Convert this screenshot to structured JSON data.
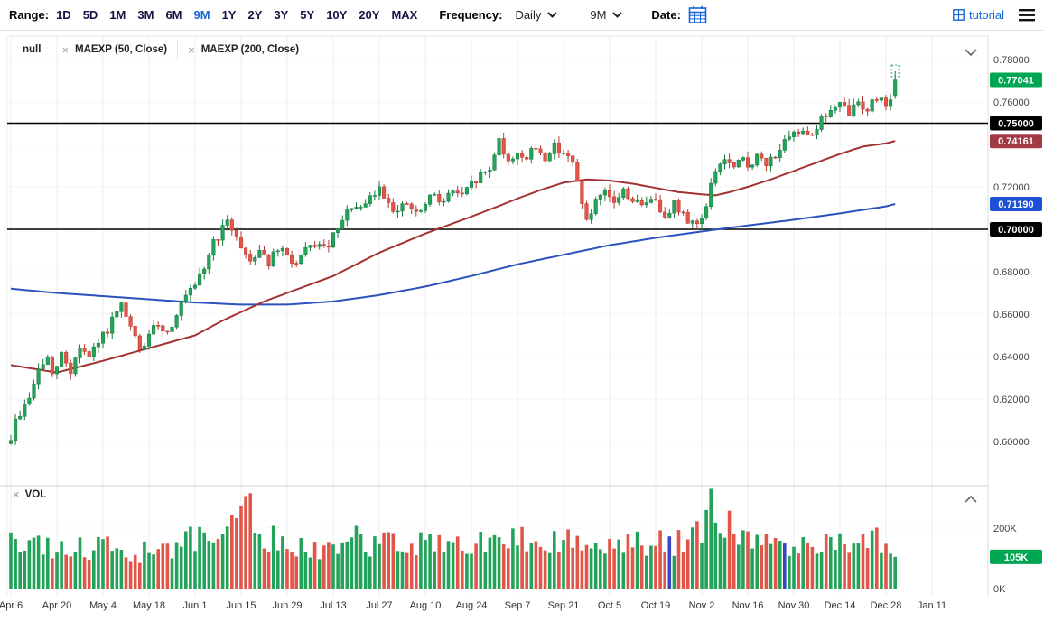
{
  "toolbar": {
    "range_label": "Range:",
    "range_options": [
      "1D",
      "5D",
      "1M",
      "3M",
      "6M",
      "9M",
      "1Y",
      "2Y",
      "3Y",
      "5Y",
      "10Y",
      "20Y",
      "MAX"
    ],
    "range_active": "9M",
    "frequency_label": "Frequency:",
    "frequency_value": "Daily",
    "period_value": "9M",
    "date_label": "Date:",
    "tutorial_label": "tutorial",
    "accent_color": "#1766d9"
  },
  "legend": {
    "main": [
      {
        "label": "null",
        "closable": false
      },
      {
        "label": "MAEXP (50, Close)",
        "closable": true
      },
      {
        "label": "MAEXP (200, Close)",
        "closable": true
      }
    ],
    "volume_label": "VOL"
  },
  "chart_data": {
    "type": "candlestick",
    "title": "",
    "candle_days": 193,
    "days_total": 205,
    "price_axis": {
      "min": 0.585,
      "max": 0.788,
      "ticks": [
        0.78,
        0.76,
        0.74,
        0.72,
        0.7,
        0.68,
        0.66,
        0.64,
        0.62,
        0.6
      ],
      "format_decimals": 5
    },
    "x_labels": [
      {
        "label": "Apr 6",
        "day": 0
      },
      {
        "label": "Apr 20",
        "day": 10
      },
      {
        "label": "May 4",
        "day": 20
      },
      {
        "label": "May 18",
        "day": 30
      },
      {
        "label": "Jun 1",
        "day": 40
      },
      {
        "label": "Jun 15",
        "day": 50
      },
      {
        "label": "Jun 29",
        "day": 60
      },
      {
        "label": "Jul 13",
        "day": 70
      },
      {
        "label": "Jul 27",
        "day": 80
      },
      {
        "label": "Aug 10",
        "day": 90
      },
      {
        "label": "Aug 24",
        "day": 100
      },
      {
        "label": "Sep 7",
        "day": 110
      },
      {
        "label": "Sep 21",
        "day": 120
      },
      {
        "label": "Oct 5",
        "day": 130
      },
      {
        "label": "Oct 19",
        "day": 140
      },
      {
        "label": "Nov 2",
        "day": 150
      },
      {
        "label": "Nov 16",
        "day": 160
      },
      {
        "label": "Nov 30",
        "day": 170
      },
      {
        "label": "Dec 14",
        "day": 180
      },
      {
        "label": "Dec 28",
        "day": 190
      },
      {
        "label": "Jan 11",
        "day": 200
      }
    ],
    "close_anchors": [
      [
        0,
        0.602
      ],
      [
        1,
        0.609
      ],
      [
        3,
        0.617
      ],
      [
        5,
        0.626
      ],
      [
        6,
        0.634
      ],
      [
        8,
        0.639
      ],
      [
        9,
        0.63
      ],
      [
        11,
        0.641
      ],
      [
        13,
        0.633
      ],
      [
        15,
        0.645
      ],
      [
        17,
        0.639
      ],
      [
        19,
        0.646
      ],
      [
        21,
        0.653
      ],
      [
        24,
        0.663
      ],
      [
        26,
        0.653
      ],
      [
        28,
        0.643
      ],
      [
        30,
        0.649
      ],
      [
        32,
        0.656
      ],
      [
        34,
        0.651
      ],
      [
        36,
        0.661
      ],
      [
        38,
        0.668
      ],
      [
        40,
        0.672
      ],
      [
        42,
        0.682
      ],
      [
        44,
        0.694
      ],
      [
        46,
        0.7
      ],
      [
        47,
        0.7025
      ],
      [
        49,
        0.698
      ],
      [
        50,
        0.691
      ],
      [
        52,
        0.6855
      ],
      [
        54,
        0.691
      ],
      [
        56,
        0.6845
      ],
      [
        58,
        0.69
      ],
      [
        60,
        0.6875
      ],
      [
        62,
        0.6835
      ],
      [
        64,
        0.689
      ],
      [
        66,
        0.6935
      ],
      [
        68,
        0.69
      ],
      [
        70,
        0.696
      ],
      [
        72,
        0.703
      ],
      [
        74,
        0.7115
      ],
      [
        76,
        0.708
      ],
      [
        78,
        0.7145
      ],
      [
        80,
        0.719
      ],
      [
        82,
        0.7135
      ],
      [
        84,
        0.708
      ],
      [
        86,
        0.712
      ],
      [
        88,
        0.7065
      ],
      [
        90,
        0.711
      ],
      [
        92,
        0.717
      ],
      [
        94,
        0.713
      ],
      [
        96,
        0.7185
      ],
      [
        98,
        0.715
      ],
      [
        100,
        0.721
      ],
      [
        102,
        0.7255
      ],
      [
        104,
        0.728
      ],
      [
        106,
        0.744
      ],
      [
        107,
        0.7365
      ],
      [
        108,
        0.7305
      ],
      [
        110,
        0.737
      ],
      [
        112,
        0.733
      ],
      [
        114,
        0.7385
      ],
      [
        116,
        0.734
      ],
      [
        118,
        0.739
      ],
      [
        120,
        0.737
      ],
      [
        122,
        0.73
      ],
      [
        123,
        0.722
      ],
      [
        124,
        0.714
      ],
      [
        125,
        0.703
      ],
      [
        127,
        0.712
      ],
      [
        129,
        0.716
      ],
      [
        131,
        0.713
      ],
      [
        133,
        0.718
      ],
      [
        135,
        0.714
      ],
      [
        137,
        0.71
      ],
      [
        139,
        0.716
      ],
      [
        140,
        0.712
      ],
      [
        142,
        0.708
      ],
      [
        144,
        0.712
      ],
      [
        146,
        0.706
      ],
      [
        148,
        0.704
      ],
      [
        149,
        0.702
      ],
      [
        150,
        0.707
      ],
      [
        151,
        0.71
      ],
      [
        152,
        0.72
      ],
      [
        153,
        0.728
      ],
      [
        155,
        0.733
      ],
      [
        157,
        0.728
      ],
      [
        159,
        0.733
      ],
      [
        160,
        0.73
      ],
      [
        162,
        0.734
      ],
      [
        164,
        0.73
      ],
      [
        166,
        0.736
      ],
      [
        168,
        0.74
      ],
      [
        170,
        0.744
      ],
      [
        172,
        0.748
      ],
      [
        174,
        0.745
      ],
      [
        176,
        0.752
      ],
      [
        178,
        0.756
      ],
      [
        180,
        0.758
      ],
      [
        182,
        0.755
      ],
      [
        184,
        0.76
      ],
      [
        186,
        0.757
      ],
      [
        188,
        0.762
      ],
      [
        190,
        0.76
      ],
      [
        191,
        0.7635
      ],
      [
        192,
        0.77041
      ]
    ],
    "noise_close": 0.005,
    "noise_wick": 0.003,
    "last_candle": {
      "open": 0.763,
      "high": 0.7745,
      "low": 0.7615,
      "close": 0.77041
    },
    "forming_marker": {
      "top": 0.7774,
      "bottom": 0.7719
    },
    "ma50": {
      "name": "MAEXP (50, Close)",
      "anchors": [
        [
          0,
          0.636
        ],
        [
          10,
          0.6325
        ],
        [
          20,
          0.638
        ],
        [
          30,
          0.644
        ],
        [
          40,
          0.65
        ],
        [
          46,
          0.657
        ],
        [
          50,
          0.661
        ],
        [
          55,
          0.666
        ],
        [
          60,
          0.67
        ],
        [
          70,
          0.678
        ],
        [
          80,
          0.689
        ],
        [
          90,
          0.698
        ],
        [
          100,
          0.706
        ],
        [
          106,
          0.711
        ],
        [
          110,
          0.7145
        ],
        [
          115,
          0.7185
        ],
        [
          120,
          0.722
        ],
        [
          125,
          0.7235
        ],
        [
          130,
          0.723
        ],
        [
          135,
          0.7215
        ],
        [
          140,
          0.7195
        ],
        [
          145,
          0.7175
        ],
        [
          150,
          0.7165
        ],
        [
          153,
          0.716
        ],
        [
          156,
          0.7175
        ],
        [
          160,
          0.72
        ],
        [
          165,
          0.7235
        ],
        [
          170,
          0.7275
        ],
        [
          175,
          0.7315
        ],
        [
          180,
          0.7355
        ],
        [
          185,
          0.739
        ],
        [
          190,
          0.7405
        ],
        [
          192,
          0.74161
        ]
      ]
    },
    "ma200": {
      "name": "MAEXP (200, Close)",
      "anchors": [
        [
          0,
          0.672
        ],
        [
          10,
          0.67
        ],
        [
          20,
          0.6685
        ],
        [
          30,
          0.667
        ],
        [
          40,
          0.6655
        ],
        [
          50,
          0.6645
        ],
        [
          60,
          0.6645
        ],
        [
          70,
          0.666
        ],
        [
          80,
          0.669
        ],
        [
          90,
          0.673
        ],
        [
          100,
          0.678
        ],
        [
          110,
          0.6835
        ],
        [
          120,
          0.688
        ],
        [
          130,
          0.6925
        ],
        [
          140,
          0.696
        ],
        [
          150,
          0.699
        ],
        [
          160,
          0.7018
        ],
        [
          170,
          0.7045
        ],
        [
          180,
          0.7075
        ],
        [
          190,
          0.7108
        ],
        [
          192,
          0.7119
        ]
      ]
    },
    "horizontal_lines": [
      0.75,
      0.7
    ],
    "price_badges": [
      {
        "value": 0.77041,
        "label": "0.77041",
        "color": "#00a651"
      },
      {
        "value": 0.75,
        "label": "0.75000",
        "color": "#000000"
      },
      {
        "value": 0.74161,
        "label": "0.74161",
        "color": "#a33945"
      },
      {
        "value": 0.7119,
        "label": "0.71190",
        "color": "#1d4fd7"
      },
      {
        "value": 0.7,
        "label": "0.70000",
        "color": "#000000"
      }
    ],
    "volume": {
      "unit": "K",
      "ticks": [
        {
          "value": 200,
          "label": "200K"
        },
        {
          "value": 0,
          "label": "0K"
        }
      ],
      "anchors": [
        [
          0,
          150
        ],
        [
          4,
          130
        ],
        [
          8,
          140
        ],
        [
          12,
          125
        ],
        [
          16,
          135
        ],
        [
          20,
          130
        ],
        [
          24,
          140
        ],
        [
          28,
          120
        ],
        [
          32,
          130
        ],
        [
          36,
          140
        ],
        [
          40,
          170
        ],
        [
          44,
          190
        ],
        [
          48,
          210
        ],
        [
          50,
          250
        ],
        [
          51,
          270
        ],
        [
          52,
          255
        ],
        [
          54,
          190
        ],
        [
          58,
          150
        ],
        [
          62,
          140
        ],
        [
          66,
          135
        ],
        [
          70,
          150
        ],
        [
          74,
          165
        ],
        [
          78,
          150
        ],
        [
          82,
          145
        ],
        [
          86,
          140
        ],
        [
          90,
          145
        ],
        [
          94,
          150
        ],
        [
          98,
          145
        ],
        [
          102,
          155
        ],
        [
          106,
          175
        ],
        [
          110,
          160
        ],
        [
          114,
          155
        ],
        [
          118,
          160
        ],
        [
          120,
          165
        ],
        [
          123,
          180
        ],
        [
          126,
          165
        ],
        [
          130,
          155
        ],
        [
          134,
          150
        ],
        [
          138,
          155
        ],
        [
          142,
          150
        ],
        [
          146,
          155
        ],
        [
          150,
          185
        ],
        [
          152,
          320
        ],
        [
          153,
          260
        ],
        [
          154,
          230
        ],
        [
          156,
          200
        ],
        [
          158,
          175
        ],
        [
          160,
          165
        ],
        [
          164,
          155
        ],
        [
          168,
          150
        ],
        [
          172,
          150
        ],
        [
          176,
          145
        ],
        [
          180,
          155
        ],
        [
          183,
          165
        ],
        [
          186,
          170
        ],
        [
          188,
          165
        ],
        [
          190,
          135
        ],
        [
          192,
          105
        ]
      ],
      "last": 105,
      "blue_days": [
        143,
        168
      ],
      "badge": {
        "value": 105,
        "label": "105K",
        "color": "#00a651"
      }
    },
    "colors": {
      "up": "#23a35a",
      "up_dark": "#177a41",
      "down": "#e25549",
      "down_dark": "#b6392e",
      "ma50": "#a33232",
      "ma200": "#2b52bd",
      "vol_blue": "#3946c0"
    }
  }
}
